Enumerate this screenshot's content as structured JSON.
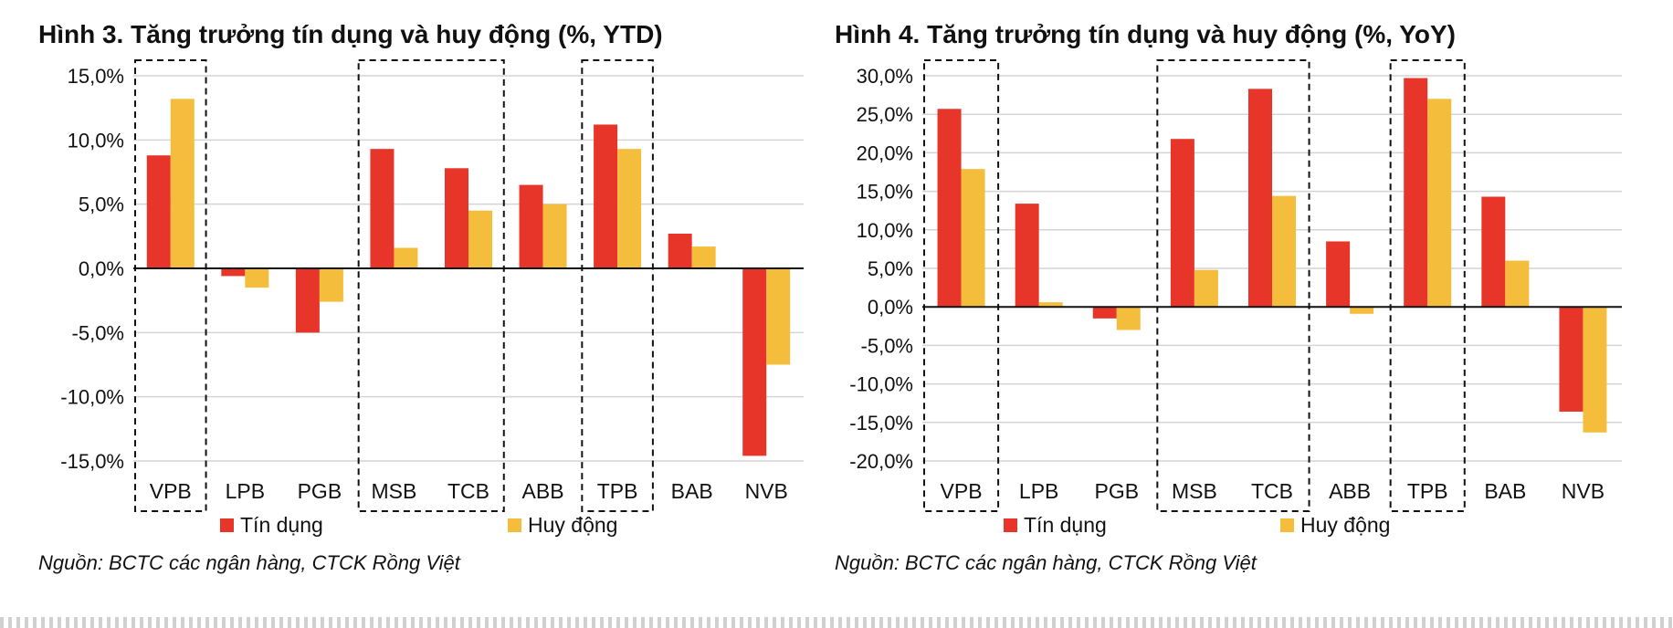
{
  "chart_data": [
    {
      "type": "bar",
      "title": "Hình 3. Tăng trưởng tín dụng và huy động (%, YTD)",
      "categories": [
        "VPB",
        "LPB",
        "PGB",
        "MSB",
        "TCB",
        "ABB",
        "TPB",
        "BAB",
        "NVB"
      ],
      "series": [
        {
          "name": "Tín dụng",
          "color": "#e8352a",
          "values": [
            8.8,
            -0.6,
            -5.0,
            9.3,
            7.8,
            6.5,
            11.2,
            2.7,
            -14.6
          ]
        },
        {
          "name": "Huy động",
          "color": "#f5bd3c",
          "values": [
            13.2,
            -1.5,
            -2.6,
            1.6,
            4.5,
            5.0,
            9.3,
            1.7,
            -7.5
          ]
        }
      ],
      "ylim": [
        -15,
        15
      ],
      "yticks": [
        15,
        10,
        5,
        0,
        -5,
        -10,
        -15
      ],
      "ytick_labels": [
        "15,0%",
        "10,0%",
        "5,0%",
        "0,0%",
        "-5,0%",
        "-10,0%",
        "-15,0%"
      ],
      "highlight_groups": [
        [
          "VPB"
        ],
        [
          "MSB",
          "TCB"
        ],
        [
          "TPB"
        ]
      ],
      "grid": true,
      "legend": "bottom",
      "source": "Nguồn: BCTC các ngân hàng, CTCK Rồng Việt"
    },
    {
      "type": "bar",
      "title": "Hình 4. Tăng trưởng tín dụng và huy động (%, YoY)",
      "categories": [
        "VPB",
        "LPB",
        "PGB",
        "MSB",
        "TCB",
        "ABB",
        "TPB",
        "BAB",
        "NVB"
      ],
      "series": [
        {
          "name": "Tín dụng",
          "color": "#e8352a",
          "values": [
            25.7,
            13.4,
            -1.5,
            21.8,
            28.3,
            8.5,
            29.7,
            14.3,
            -13.6
          ]
        },
        {
          "name": "Huy động",
          "color": "#f5bd3c",
          "values": [
            17.9,
            0.6,
            -3.0,
            4.8,
            14.4,
            -0.9,
            27.0,
            6.0,
            -16.3
          ]
        }
      ],
      "ylim": [
        -20,
        30
      ],
      "yticks": [
        30,
        25,
        20,
        15,
        10,
        5,
        0,
        -5,
        -10,
        -15,
        -20
      ],
      "ytick_labels": [
        "30,0%",
        "25,0%",
        "20,0%",
        "15,0%",
        "10,0%",
        "5,0%",
        "0,0%",
        "-5,0%",
        "-10,0%",
        "-15,0%",
        "-20,0%"
      ],
      "highlight_groups": [
        [
          "VPB"
        ],
        [
          "MSB",
          "TCB"
        ],
        [
          "TPB"
        ]
      ],
      "grid": true,
      "legend": "bottom",
      "source": "Nguồn: BCTC các ngân hàng, CTCK Rồng Việt"
    }
  ]
}
